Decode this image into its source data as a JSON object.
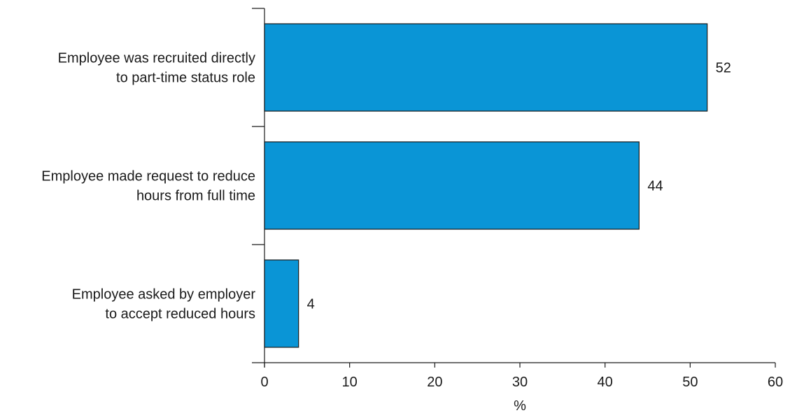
{
  "chart_data": {
    "type": "bar",
    "orientation": "horizontal",
    "title": "",
    "xlabel": "%",
    "ylabel": "",
    "categories": [
      [
        "Employee was recruited directly",
        "to part-time status role"
      ],
      [
        "Employee made request to reduce",
        "hours from full time"
      ],
      [
        "Employee asked by employer",
        "to accept reduced hours"
      ]
    ],
    "values": [
      52,
      44,
      4
    ],
    "data_labels": [
      "52",
      "44",
      "4"
    ],
    "xlim": [
      0,
      60
    ],
    "xticks": [
      0,
      10,
      20,
      30,
      40,
      50,
      60
    ],
    "grid": false,
    "legend": "none",
    "bar_color": "#0a95d6",
    "bar_edge_color": "#1a1a1a",
    "axis_color": "#1a1a1a"
  }
}
